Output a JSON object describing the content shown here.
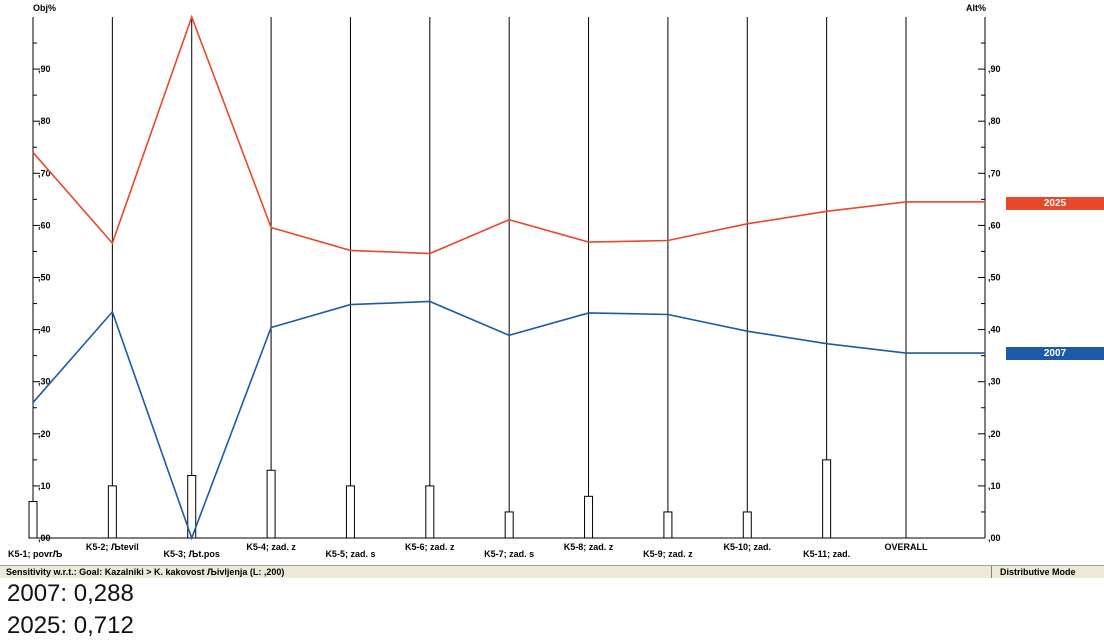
{
  "chart_data": {
    "type": "line",
    "left_axis_label": "Obj%",
    "right_axis_label": "Alt%",
    "ylim": [
      0,
      1
    ],
    "y_ticks": [
      ",00",
      ",10",
      ",20",
      ",30",
      ",40",
      ",50",
      ",60",
      ",70",
      ",80",
      ",90"
    ],
    "categories": [
      "K5-1; povrЉ",
      "K5-2; Љtevil",
      "K5-3; Љt.pos",
      "K5-4; zad. z",
      "K5-5; zad. s",
      "K5-6; zad. z",
      "K5-7; zad. s",
      "K5-8; zad. z",
      "K5-9; zad. z",
      "K5-10; zad.",
      "K5-11; zad.",
      "OVERALL"
    ],
    "objective_weights": [
      0.07,
      0.1,
      0.12,
      0.13,
      0.1,
      0.1,
      0.05,
      0.08,
      0.05,
      0.05,
      0.15,
      null
    ],
    "series": [
      {
        "name": "2025",
        "color": "#e8482a",
        "values": [
          0.74,
          0.566,
          1.0,
          0.596,
          0.552,
          0.546,
          0.611,
          0.568,
          0.571,
          0.603,
          0.627,
          0.645
        ],
        "end_value": 0.645
      },
      {
        "name": "2007",
        "color": "#1c5aa8",
        "values": [
          0.26,
          0.434,
          0.0,
          0.404,
          0.448,
          0.454,
          0.389,
          0.432,
          0.429,
          0.397,
          0.373,
          0.355
        ],
        "end_value": 0.355
      }
    ]
  },
  "status": {
    "left": "Sensitivity w.r.t.: Goal: Kazalniki > K. kakovost Љivljenja (L: ,200)",
    "right": "Distributive Mode"
  },
  "summary": [
    "2007: 0,288",
    "2025: 0,712"
  ]
}
